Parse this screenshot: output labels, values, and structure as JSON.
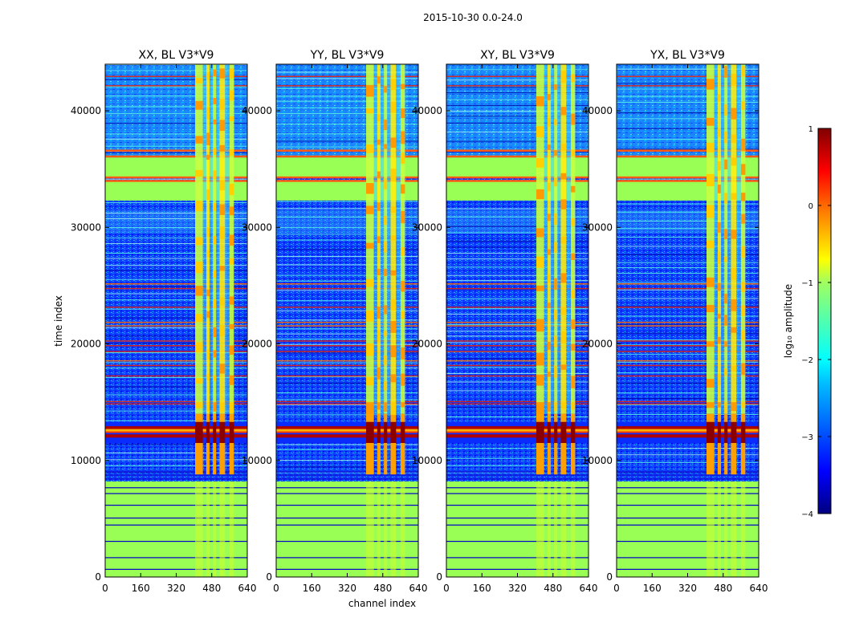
{
  "figure": {
    "suptitle": "2015-10-30 0.0-24.0"
  },
  "chart_data": {
    "type": "heatmap",
    "xlabel": "channel index",
    "ylabel": "time index",
    "xlim": [
      0,
      640
    ],
    "ylim": [
      0,
      44000
    ],
    "xticks": [
      0,
      160,
      320,
      480,
      640
    ],
    "yticks": [
      0,
      10000,
      20000,
      30000,
      40000
    ],
    "panels": [
      {
        "title": "XX, BL V3*V9",
        "transition_x": 10000
      },
      {
        "title": "YY, BL V3*V9",
        "transition_x": 10000
      },
      {
        "title": "XY, BL V3*V9",
        "transition_x": 10000
      },
      {
        "title": "YX, BL V3*V9",
        "transition_x": 10000
      }
    ],
    "rfi_channel_bands": [
      [
        405,
        440
      ],
      [
        455,
        470
      ],
      [
        485,
        500
      ],
      [
        515,
        540
      ],
      [
        560,
        580
      ]
    ],
    "flagged_time_blocks": [
      [
        0,
        8200
      ],
      [
        32300,
        34000
      ],
      [
        34300,
        36000
      ]
    ],
    "strong_time_band": [
      11500,
      13300
    ],
    "colorbar": {
      "label": "log₁₀ amplitude",
      "range": [
        -4,
        1
      ],
      "ticks": [
        1,
        0,
        -1,
        -2,
        -3,
        -4
      ],
      "tick_labels": [
        "1",
        "0",
        "−1",
        "−2",
        "−3",
        "−4"
      ]
    }
  },
  "colors": {
    "jet": [
      "#000080",
      "#0000ff",
      "#007fff",
      "#00ffff",
      "#7fff7f",
      "#ffff00",
      "#ff7f00",
      "#ff0000",
      "#800000"
    ],
    "flagged": "#99ff55"
  }
}
